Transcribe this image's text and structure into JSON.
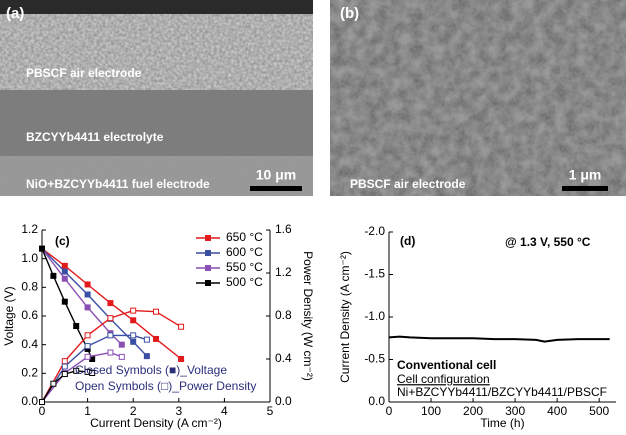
{
  "images": [
    {
      "label": "(a)",
      "texts": [
        "PBSCF air electrode",
        "BZCYYb4411 electrolyte",
        "NiO+BZCYYb4411 fuel electrode"
      ],
      "scale_bar": "10 μm"
    },
    {
      "label": "(b)",
      "texts": [
        "PBSCF air electrode"
      ],
      "scale_bar": "1 μm"
    }
  ],
  "chart_data": [
    {
      "type": "line",
      "title": "(c)",
      "x_label": "Current Density (A cm⁻²)",
      "y_label": "Voltage (V)",
      "y2_label": "Power Density (W cm⁻²)",
      "xlim": [
        0,
        5
      ],
      "xticks": [
        0,
        1,
        2,
        3,
        4,
        5
      ],
      "ylim": [
        0,
        1.2
      ],
      "yticks": [
        {
          "value": 0,
          "label": "0.0"
        },
        0.2,
        0.4,
        0.6,
        0.8,
        {
          "value": 1,
          "label": "1.0"
        },
        1.2
      ],
      "y2lim": [
        0,
        1.6
      ],
      "y2ticks": [
        {
          "value": 0,
          "label": "0.0"
        },
        0.4,
        0.8,
        1.2,
        1.6
      ],
      "legend": "top-right",
      "annotations": [
        "Closed Symbols (■)_Voltage",
        "Open Symbols (□)_Power Density"
      ],
      "series": [
        {
          "name": "650 °C",
          "color": "#e31a1c",
          "marker": "closed",
          "x": [
            0,
            0.5,
            1,
            1.5,
            2,
            2.5,
            3.05
          ],
          "values": [
            1.07,
            0.95,
            0.82,
            0.69,
            0.57,
            0.44,
            0.3
          ]
        },
        {
          "name": "600 °C",
          "color": "#3b4fa3",
          "marker": "closed",
          "x": [
            0,
            0.5,
            1,
            1.5,
            2,
            2.3
          ],
          "values": [
            1.07,
            0.91,
            0.75,
            0.58,
            0.42,
            0.32
          ]
        },
        {
          "name": "550 °C",
          "color": "#8a4fb3",
          "marker": "closed",
          "x": [
            0,
            0.5,
            1,
            1.5,
            1.75
          ],
          "values": [
            1.07,
            0.86,
            0.66,
            0.48,
            0.4
          ]
        },
        {
          "name": "500 °C",
          "color": "#000000",
          "marker": "closed",
          "x": [
            0,
            0.25,
            0.5,
            0.75,
            1,
            1.1
          ],
          "values": [
            1.07,
            0.88,
            0.7,
            0.53,
            0.37,
            0.3
          ]
        },
        {
          "color": "#e31a1c",
          "marker": "open",
          "axis": "y2",
          "x": [
            0,
            0.5,
            1,
            1.5,
            2,
            2.5,
            3.05
          ],
          "values": [
            0,
            0.38,
            0.62,
            0.78,
            0.85,
            0.84,
            0.7
          ]
        },
        {
          "color": "#3b4fa3",
          "marker": "open",
          "axis": "y2",
          "x": [
            0,
            0.5,
            1,
            1.5,
            2,
            2.3
          ],
          "values": [
            0,
            0.33,
            0.52,
            0.62,
            0.62,
            0.58
          ]
        },
        {
          "color": "#8a4fb3",
          "marker": "open",
          "axis": "y2",
          "x": [
            0,
            0.5,
            1,
            1.5,
            1.75
          ],
          "values": [
            0,
            0.27,
            0.42,
            0.46,
            0.42
          ]
        },
        {
          "color": "#000000",
          "marker": "open",
          "axis": "y2",
          "x": [
            0,
            0.25,
            0.5,
            0.75,
            1,
            1.1
          ],
          "values": [
            0,
            0.17,
            0.26,
            0.29,
            0.28,
            0.27
          ]
        }
      ]
    },
    {
      "type": "line",
      "title": "(d)",
      "x_label": "Time (h)",
      "y_label": "Current Density (A cm⁻²)",
      "xlim": [
        0,
        540
      ],
      "xticks": [
        0,
        100,
        200,
        300,
        400,
        500
      ],
      "ylim": [
        0,
        -2
      ],
      "yticks": [
        {
          "value": -2,
          "label": "-2.0"
        },
        -1.5,
        {
          "value": -1,
          "label": "-1.0"
        },
        -0.5,
        {
          "value": 0,
          "label": "0.0"
        }
      ],
      "annotations": [
        "@ 1.3 V, 550 °C",
        "Conventional cell",
        "Cell configuration",
        "Ni+BZCYYb4411/BZCYYb4411/PBSCF"
      ],
      "series": [
        {
          "color": "#000000",
          "marker": "none",
          "x": [
            0,
            25,
            50,
            100,
            150,
            200,
            250,
            300,
            350,
            370,
            400,
            450,
            500,
            525
          ],
          "values": [
            -0.76,
            -0.77,
            -0.76,
            -0.75,
            -0.75,
            -0.75,
            -0.74,
            -0.74,
            -0.73,
            -0.71,
            -0.73,
            -0.74,
            -0.74,
            -0.74
          ]
        }
      ]
    }
  ]
}
